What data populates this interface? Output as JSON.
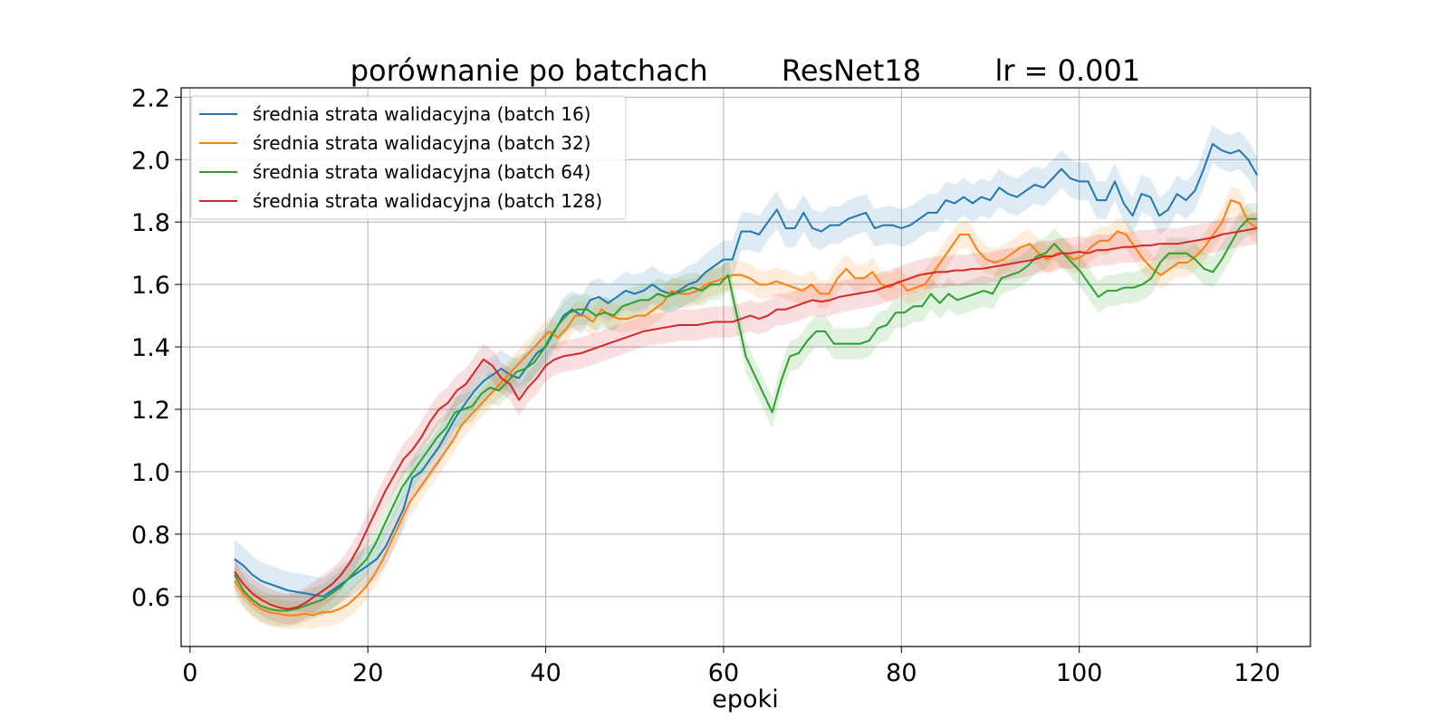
{
  "chart_data": {
    "type": "line",
    "title": "porównanie po batchach        ResNet18        lr = 0.001",
    "xlabel": "epoki",
    "ylabel": "",
    "xlim": [
      -1,
      126
    ],
    "ylim": [
      0.44,
      2.23
    ],
    "xticks": [
      0,
      20,
      40,
      60,
      80,
      100,
      120
    ],
    "yticks": [
      0.6,
      0.8,
      1.0,
      1.2,
      1.4,
      1.6,
      1.8,
      2.0,
      2.2
    ],
    "grid": true,
    "legend_position": "upper-left",
    "x_range": [
      5,
      120
    ],
    "series": [
      {
        "name": "średnia strata walidacyjna (batch 16)",
        "color": "#1f77b4",
        "band_half_width": 0.06,
        "values": [
          0.72,
          0.7,
          0.67,
          0.65,
          0.64,
          0.63,
          0.62,
          0.615,
          0.61,
          0.605,
          0.6,
          0.62,
          0.64,
          0.66,
          0.68,
          0.7,
          0.72,
          0.76,
          0.82,
          0.88,
          0.98,
          1.0,
          1.04,
          1.08,
          1.13,
          1.18,
          1.22,
          1.26,
          1.29,
          1.31,
          1.33,
          1.31,
          1.3,
          1.34,
          1.38,
          1.4,
          1.45,
          1.5,
          1.52,
          1.5,
          1.55,
          1.56,
          1.54,
          1.56,
          1.58,
          1.57,
          1.58,
          1.6,
          1.58,
          1.57,
          1.58,
          1.6,
          1.61,
          1.64,
          1.66,
          1.68,
          1.68,
          1.77,
          1.77,
          1.76,
          1.8,
          1.84,
          1.78,
          1.78,
          1.83,
          1.78,
          1.77,
          1.79,
          1.79,
          1.81,
          1.82,
          1.83,
          1.78,
          1.79,
          1.79,
          1.78,
          1.79,
          1.81,
          1.83,
          1.83,
          1.87,
          1.86,
          1.88,
          1.86,
          1.88,
          1.87,
          1.91,
          1.89,
          1.88,
          1.9,
          1.92,
          1.91,
          1.94,
          1.97,
          1.94,
          1.93,
          1.93,
          1.87,
          1.87,
          1.93,
          1.86,
          1.82,
          1.89,
          1.88,
          1.82,
          1.84,
          1.89,
          1.87,
          1.9,
          1.97,
          2.05,
          2.03,
          2.02,
          2.03,
          2.0,
          1.95
        ]
      },
      {
        "name": "średnia strata walidacyjna (batch 32)",
        "color": "#ff7f0e",
        "band_half_width": 0.045,
        "values": [
          0.65,
          0.61,
          0.58,
          0.56,
          0.55,
          0.545,
          0.54,
          0.54,
          0.545,
          0.54,
          0.55,
          0.55,
          0.56,
          0.575,
          0.6,
          0.63,
          0.67,
          0.72,
          0.78,
          0.84,
          0.9,
          0.94,
          0.98,
          1.02,
          1.06,
          1.1,
          1.15,
          1.18,
          1.21,
          1.24,
          1.27,
          1.3,
          1.33,
          1.36,
          1.39,
          1.42,
          1.45,
          1.43,
          1.46,
          1.5,
          1.5,
          1.48,
          1.52,
          1.5,
          1.49,
          1.49,
          1.5,
          1.5,
          1.52,
          1.54,
          1.58,
          1.57,
          1.57,
          1.58,
          1.6,
          1.61,
          1.62,
          1.63,
          1.63,
          1.62,
          1.6,
          1.6,
          1.61,
          1.6,
          1.59,
          1.58,
          1.6,
          1.57,
          1.57,
          1.62,
          1.65,
          1.62,
          1.62,
          1.64,
          1.6,
          1.59,
          1.61,
          1.58,
          1.59,
          1.6,
          1.64,
          1.68,
          1.72,
          1.76,
          1.76,
          1.71,
          1.68,
          1.67,
          1.68,
          1.7,
          1.72,
          1.73,
          1.7,
          1.68,
          1.7,
          1.7,
          1.68,
          1.69,
          1.72,
          1.74,
          1.74,
          1.77,
          1.76,
          1.72,
          1.68,
          1.65,
          1.63,
          1.65,
          1.67,
          1.67,
          1.69,
          1.72,
          1.76,
          1.8,
          1.87,
          1.86,
          1.8,
          1.78
        ]
      },
      {
        "name": "średnia strata walidacyjna (batch 64)",
        "color": "#2ca02c",
        "band_half_width": 0.05,
        "values": [
          0.67,
          0.62,
          0.59,
          0.57,
          0.56,
          0.555,
          0.555,
          0.56,
          0.57,
          0.58,
          0.59,
          0.61,
          0.63,
          0.66,
          0.69,
          0.72,
          0.77,
          0.83,
          0.89,
          0.95,
          0.99,
          1.03,
          1.07,
          1.11,
          1.14,
          1.19,
          1.2,
          1.21,
          1.25,
          1.27,
          1.26,
          1.29,
          1.32,
          1.33,
          1.35,
          1.39,
          1.44,
          1.48,
          1.51,
          1.52,
          1.52,
          1.5,
          1.51,
          1.5,
          1.53,
          1.54,
          1.55,
          1.55,
          1.57,
          1.56,
          1.57,
          1.58,
          1.59,
          1.58,
          1.6,
          1.6,
          1.63,
          1.5,
          1.37,
          1.31,
          1.25,
          1.19,
          1.29,
          1.37,
          1.38,
          1.42,
          1.45,
          1.45,
          1.41,
          1.41,
          1.41,
          1.41,
          1.42,
          1.46,
          1.47,
          1.51,
          1.51,
          1.53,
          1.53,
          1.57,
          1.54,
          1.57,
          1.55,
          1.56,
          1.57,
          1.58,
          1.57,
          1.62,
          1.63,
          1.64,
          1.66,
          1.69,
          1.7,
          1.73,
          1.7,
          1.67,
          1.64,
          1.6,
          1.56,
          1.58,
          1.58,
          1.59,
          1.59,
          1.6,
          1.62,
          1.67,
          1.7,
          1.7,
          1.7,
          1.68,
          1.65,
          1.64,
          1.68,
          1.73,
          1.78,
          1.81,
          1.81
        ]
      },
      {
        "name": "średnia strata walidacyjna (batch 128)",
        "color": "#d62728",
        "band_half_width": 0.05,
        "values": [
          0.68,
          0.64,
          0.61,
          0.59,
          0.575,
          0.565,
          0.56,
          0.565,
          0.58,
          0.6,
          0.62,
          0.64,
          0.67,
          0.71,
          0.76,
          0.82,
          0.88,
          0.94,
          0.99,
          1.04,
          1.07,
          1.11,
          1.16,
          1.2,
          1.22,
          1.26,
          1.28,
          1.32,
          1.36,
          1.34,
          1.3,
          1.28,
          1.23,
          1.27,
          1.3,
          1.34,
          1.36,
          1.37,
          1.375,
          1.38,
          1.39,
          1.4,
          1.41,
          1.42,
          1.43,
          1.44,
          1.45,
          1.455,
          1.46,
          1.465,
          1.47,
          1.47,
          1.47,
          1.475,
          1.48,
          1.48,
          1.48,
          1.49,
          1.5,
          1.49,
          1.5,
          1.52,
          1.52,
          1.53,
          1.54,
          1.55,
          1.545,
          1.55,
          1.56,
          1.565,
          1.57,
          1.575,
          1.58,
          1.59,
          1.6,
          1.61,
          1.62,
          1.63,
          1.635,
          1.64,
          1.64,
          1.645,
          1.645,
          1.65,
          1.65,
          1.655,
          1.66,
          1.665,
          1.67,
          1.675,
          1.68,
          1.69,
          1.69,
          1.7,
          1.7,
          1.705,
          1.7,
          1.71,
          1.71,
          1.715,
          1.72,
          1.72,
          1.725,
          1.725,
          1.73,
          1.73,
          1.73,
          1.735,
          1.74,
          1.745,
          1.75,
          1.76,
          1.765,
          1.77,
          1.775,
          1.78
        ]
      }
    ]
  }
}
